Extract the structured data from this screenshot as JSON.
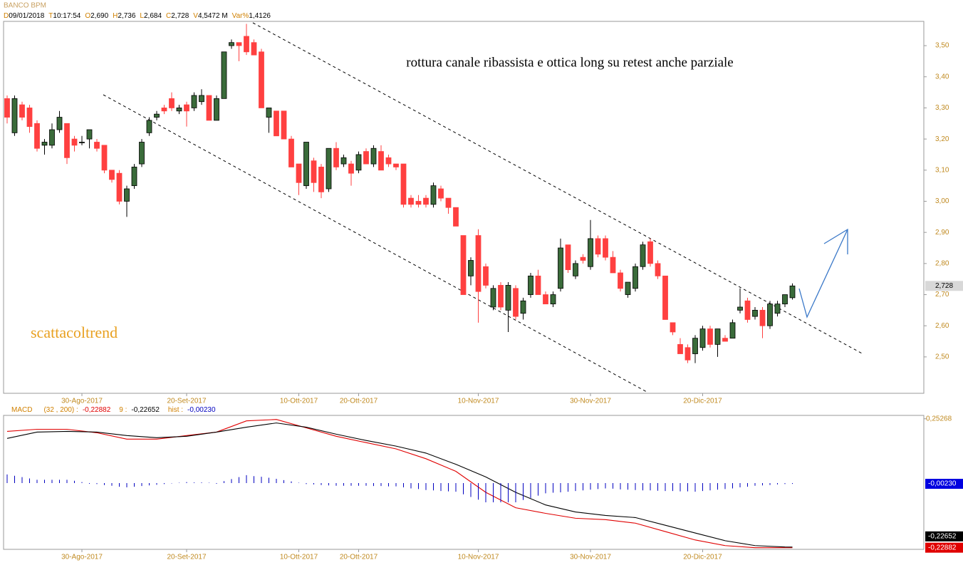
{
  "chart_data": [
    {
      "type": "candlestick",
      "title": "BANCO BPM",
      "quote": [
        {
          "key": "D",
          "value": "09/01/2018"
        },
        {
          "key": "T",
          "value": "10:17:54"
        },
        {
          "key": "O",
          "value": "2,690"
        },
        {
          "key": "H",
          "value": "2,736"
        },
        {
          "key": "L",
          "value": "2,684"
        },
        {
          "key": "C",
          "value": "2,728"
        },
        {
          "key": "V",
          "value": "4,5472 M"
        },
        {
          "key": "Var%",
          "value": "1,4126"
        }
      ],
      "annotations": [
        "rottura canale ribassista e ottica long su retest anche parziale",
        "scattacoltrend"
      ],
      "open": [
        3.33,
        3.22,
        3.31,
        3.3,
        3.25,
        3.18,
        3.18,
        3.23,
        3.25,
        3.2,
        3.19,
        3.2,
        3.19,
        3.18,
        3.1,
        3.09,
        3.0,
        3.05,
        3.12,
        3.22,
        3.27,
        3.3,
        3.33,
        3.29,
        3.31,
        3.3,
        3.32,
        3.34,
        3.26,
        3.33,
        3.5,
        3.51,
        3.53,
        3.51,
        3.48,
        3.27,
        3.29,
        3.29,
        3.2,
        3.12,
        3.05,
        3.13,
        3.11,
        3.04,
        3.17,
        3.12,
        3.12,
        3.1,
        3.16,
        3.12,
        3.16,
        3.14,
        3.12,
        3.12,
        3.01,
        3.0,
        3.01,
        2.99,
        3.04,
        3.01,
        2.98,
        2.89,
        2.76,
        2.89,
        2.79,
        2.66,
        2.73,
        2.65,
        2.72,
        2.64,
        2.7,
        2.76,
        2.7,
        2.67,
        2.72,
        2.86,
        2.76,
        2.82,
        2.79,
        2.88,
        2.88,
        2.82,
        2.77,
        2.7,
        2.72,
        2.79,
        2.87,
        2.8,
        2.76,
        2.61,
        2.54,
        2.53,
        2.51,
        2.53,
        2.59,
        2.54,
        2.56,
        2.56,
        2.65,
        2.68,
        2.63,
        2.65,
        2.6,
        2.64,
        2.67,
        2.69
      ],
      "high": [
        3.34,
        3.34,
        3.32,
        3.31,
        3.26,
        3.2,
        3.25,
        3.29,
        3.25,
        3.21,
        3.21,
        3.23,
        3.2,
        3.18,
        3.1,
        3.1,
        3.05,
        3.12,
        3.2,
        3.27,
        3.29,
        3.31,
        3.35,
        3.31,
        3.32,
        3.35,
        3.36,
        3.34,
        3.34,
        3.48,
        3.52,
        3.51,
        3.57,
        3.52,
        3.49,
        3.3,
        3.29,
        3.29,
        3.21,
        3.12,
        3.19,
        3.14,
        3.12,
        3.17,
        3.19,
        3.15,
        3.13,
        3.16,
        3.17,
        3.18,
        3.18,
        3.15,
        3.12,
        3.12,
        3.02,
        3.02,
        3.02,
        3.06,
        3.05,
        3.01,
        2.98,
        2.89,
        2.82,
        2.91,
        2.8,
        2.73,
        2.74,
        2.74,
        2.73,
        2.69,
        2.77,
        2.78,
        2.71,
        2.71,
        2.88,
        2.86,
        2.81,
        2.83,
        2.94,
        2.89,
        2.89,
        2.84,
        2.78,
        2.74,
        2.8,
        2.87,
        2.88,
        2.81,
        2.76,
        2.61,
        2.56,
        2.54,
        2.57,
        2.6,
        2.6,
        2.59,
        2.57,
        2.62,
        2.72,
        2.69,
        2.66,
        2.66,
        2.68,
        2.68,
        2.7,
        2.736
      ],
      "low": [
        3.25,
        3.21,
        3.26,
        3.22,
        3.16,
        3.15,
        3.17,
        3.22,
        3.12,
        3.16,
        3.18,
        3.17,
        3.16,
        3.09,
        3.06,
        2.99,
        2.95,
        3.04,
        3.11,
        3.21,
        3.26,
        3.28,
        3.29,
        3.28,
        3.24,
        3.29,
        3.31,
        3.26,
        3.26,
        3.33,
        3.49,
        3.45,
        3.47,
        3.47,
        3.3,
        3.22,
        3.21,
        3.2,
        3.11,
        3.02,
        3.04,
        3.03,
        3.01,
        3.03,
        3.1,
        3.11,
        3.05,
        3.09,
        3.12,
        3.11,
        3.1,
        3.11,
        3.1,
        2.98,
        2.98,
        2.98,
        2.98,
        2.98,
        3.0,
        2.96,
        2.92,
        2.7,
        2.73,
        2.61,
        2.72,
        2.65,
        2.65,
        2.58,
        2.62,
        2.62,
        2.69,
        2.7,
        2.67,
        2.66,
        2.71,
        2.77,
        2.75,
        2.8,
        2.78,
        2.82,
        2.81,
        2.77,
        2.71,
        2.69,
        2.71,
        2.78,
        2.79,
        2.75,
        2.62,
        2.57,
        2.51,
        2.48,
        2.48,
        2.52,
        2.53,
        2.5,
        2.55,
        2.56,
        2.64,
        2.61,
        2.62,
        2.56,
        2.59,
        2.63,
        2.66,
        2.684
      ],
      "close": [
        3.27,
        3.33,
        3.27,
        3.24,
        3.17,
        3.19,
        3.23,
        3.27,
        3.14,
        3.18,
        3.19,
        3.23,
        3.17,
        3.1,
        3.07,
        3.0,
        3.04,
        3.11,
        3.19,
        3.26,
        3.28,
        3.29,
        3.3,
        3.3,
        3.29,
        3.34,
        3.34,
        3.26,
        3.33,
        3.48,
        3.51,
        3.5,
        3.48,
        3.47,
        3.3,
        3.3,
        3.21,
        3.2,
        3.11,
        3.06,
        3.19,
        3.06,
        3.03,
        3.17,
        3.11,
        3.14,
        3.09,
        3.15,
        3.12,
        3.17,
        3.1,
        3.12,
        3.11,
        2.99,
        2.99,
        2.99,
        2.99,
        3.05,
        3.01,
        2.98,
        2.92,
        2.7,
        2.81,
        2.71,
        2.73,
        2.72,
        2.66,
        2.73,
        2.63,
        2.68,
        2.76,
        2.7,
        2.67,
        2.7,
        2.85,
        2.78,
        2.8,
        2.81,
        2.88,
        2.83,
        2.82,
        2.77,
        2.72,
        2.74,
        2.79,
        2.86,
        2.8,
        2.76,
        2.62,
        2.58,
        2.51,
        2.49,
        2.56,
        2.59,
        2.54,
        2.59,
        2.55,
        2.61,
        2.66,
        2.62,
        2.65,
        2.6,
        2.67,
        2.67,
        2.7,
        2.728
      ],
      "last_label": "2,728",
      "up_color": "#3a6b3a",
      "down_color": "#ff4040",
      "ylim": [
        2.383,
        3.578
      ],
      "yticks": [
        {
          "value": 2.5,
          "label": "2,50"
        },
        {
          "value": 2.6,
          "label": "2,60"
        },
        {
          "value": 2.7,
          "label": "2,70"
        },
        {
          "value": 2.8,
          "label": "2,80"
        },
        {
          "value": 2.9,
          "label": "2,90"
        },
        {
          "value": 3.0,
          "label": "3,00"
        },
        {
          "value": 3.1,
          "label": "3,10"
        },
        {
          "value": 3.2,
          "label": "3,20"
        },
        {
          "value": 3.3,
          "label": "3,30"
        },
        {
          "value": 3.4,
          "label": "3,40"
        },
        {
          "value": 3.5,
          "label": "3,50"
        }
      ],
      "xticks": [
        {
          "value": 10,
          "label": "30-Ago-2017"
        },
        {
          "value": 24,
          "label": "20-Set-2017"
        },
        {
          "value": 39,
          "label": "10-Ott-2017"
        },
        {
          "value": 47,
          "label": "20-Ott-2017"
        },
        {
          "value": 63,
          "label": "10-Nov-2017"
        },
        {
          "value": 78,
          "label": "30-Nov-2017"
        },
        {
          "value": 93,
          "label": "20-Dic-2017"
        }
      ]
    },
    {
      "type": "macd",
      "title": "MACD",
      "series": [
        {
          "name": "(32 , 200) :",
          "color": "#e00000",
          "value_label": "-0,22882",
          "x": [
            0,
            4,
            8,
            12,
            16,
            20,
            24,
            28,
            32,
            36,
            40,
            44,
            48,
            52,
            56,
            60,
            64,
            68,
            72,
            76,
            80,
            84,
            88,
            92,
            96,
            100,
            104,
            105
          ],
          "values": [
            0.2056,
            0.2134,
            0.2134,
            0.2004,
            0.1768,
            0.1768,
            0.1899,
            0.203,
            0.2448,
            0.2501,
            0.2187,
            0.1873,
            0.1637,
            0.1402,
            0.1035,
            0.0564,
            -0.0221,
            -0.0797,
            -0.1006,
            -0.1189,
            -0.1241,
            -0.1372,
            -0.1686,
            -0.2,
            -0.221,
            -0.2288,
            -0.2288,
            -0.22882
          ]
        },
        {
          "name": "9 :",
          "color": "#000000",
          "value_label": "-0,22652",
          "x": [
            0,
            4,
            8,
            12,
            16,
            20,
            24,
            28,
            32,
            36,
            40,
            44,
            48,
            52,
            56,
            60,
            64,
            68,
            72,
            76,
            80,
            84,
            88,
            92,
            96,
            100,
            104,
            105
          ],
          "values": [
            0.1794,
            0.203,
            0.2056,
            0.203,
            0.1899,
            0.182,
            0.1873,
            0.203,
            0.2213,
            0.237,
            0.2213,
            0.1951,
            0.1716,
            0.1506,
            0.1245,
            0.0826,
            0.0355,
            -0.0221,
            -0.0692,
            -0.0954,
            -0.1084,
            -0.1163,
            -0.1451,
            -0.1739,
            -0.2027,
            -0.221,
            -0.2262,
            -0.22652
          ]
        },
        {
          "name": "hist :",
          "color": "#0000c0",
          "value_label": "-0,00230",
          "axis": "y2",
          "values": [
            0.026,
            0.022,
            0.018,
            0.014,
            0.01,
            0.01,
            0.01,
            0.01,
            0.01,
            0.007,
            0.003,
            0.0,
            -0.003,
            -0.006,
            -0.008,
            -0.011,
            -0.013,
            -0.011,
            -0.009,
            -0.007,
            -0.005,
            -0.003,
            -0.001,
            0.001,
            0.003,
            0.002,
            0.002,
            0.001,
            0.0,
            0.006,
            0.012,
            0.018,
            0.024,
            0.021,
            0.019,
            0.016,
            0.013,
            0.009,
            0.005,
            0.001,
            -0.003,
            -0.004,
            -0.006,
            -0.007,
            -0.008,
            -0.008,
            -0.008,
            -0.008,
            -0.008,
            -0.009,
            -0.009,
            -0.01,
            -0.01,
            -0.013,
            -0.016,
            -0.018,
            -0.021,
            -0.022,
            -0.024,
            -0.025,
            -0.026,
            -0.034,
            -0.042,
            -0.05,
            -0.058,
            -0.058,
            -0.058,
            -0.058,
            -0.058,
            -0.051,
            -0.045,
            -0.038,
            -0.031,
            -0.029,
            -0.028,
            -0.026,
            -0.024,
            -0.022,
            -0.02,
            -0.018,
            -0.016,
            -0.017,
            -0.019,
            -0.02,
            -0.021,
            -0.022,
            -0.022,
            -0.023,
            -0.024,
            -0.024,
            -0.025,
            -0.025,
            -0.026,
            -0.024,
            -0.022,
            -0.02,
            -0.018,
            -0.016,
            -0.013,
            -0.011,
            -0.008,
            -0.007,
            -0.006,
            -0.004,
            -0.003,
            -0.0023
          ]
        }
      ],
      "ylim": [
        -0.235,
        0.26
      ],
      "yticks": [
        {
          "value": 0.25268,
          "label": "0,25268"
        }
      ],
      "y2lim": [
        -0.2,
        0.2
      ],
      "xticks": [
        {
          "value": 10,
          "label": "30-Ago-2017"
        },
        {
          "value": 24,
          "label": "20-Set-2017"
        },
        {
          "value": 39,
          "label": "10-Ott-2017"
        },
        {
          "value": 47,
          "label": "20-Ott-2017"
        },
        {
          "value": 63,
          "label": "10-Nov-2017"
        },
        {
          "value": 78,
          "label": "30-Nov-2017"
        },
        {
          "value": 93,
          "label": "20-Dic-2017"
        }
      ]
    }
  ]
}
